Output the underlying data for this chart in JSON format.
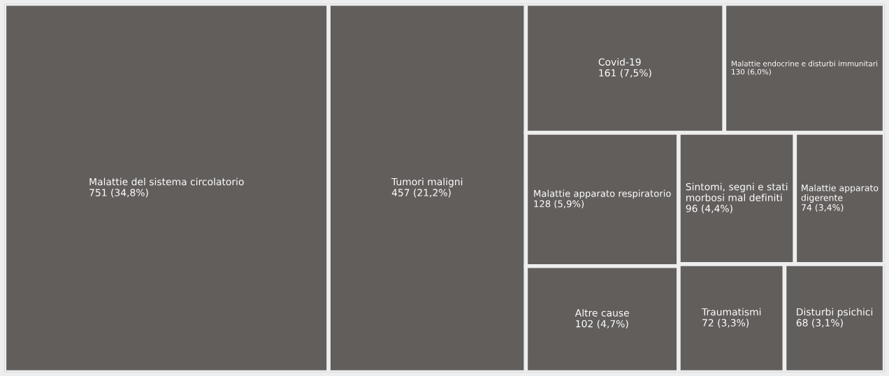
{
  "chart_data": {
    "type": "other",
    "categories": [
      "Malattie del sistema circolatorio",
      "Tumori maligni",
      "Covid-19",
      "Malattie endocrine e disturbi immunitari",
      "Malattie apparato respiratorio",
      "Altre cause",
      "Sintomi, segni e stati\nmorbosi mal definiti",
      "Malattie apparato\ndigerente",
      "Traumatismi",
      "Disturbi psichici"
    ],
    "values": [
      751,
      457,
      161,
      130,
      128,
      102,
      96,
      74,
      72,
      68
    ],
    "value_labels": [
      "751 (34,8%)",
      "457 (21,2%)",
      "161 (7,5%)",
      "130 (6,0%)",
      "128 (5,9%)",
      "102 (4,7%)",
      "96 (4,4%)",
      "74 (3,4%)",
      "72 (3,3%)",
      "68 (3,1%)"
    ],
    "color": "#625e5c"
  }
}
